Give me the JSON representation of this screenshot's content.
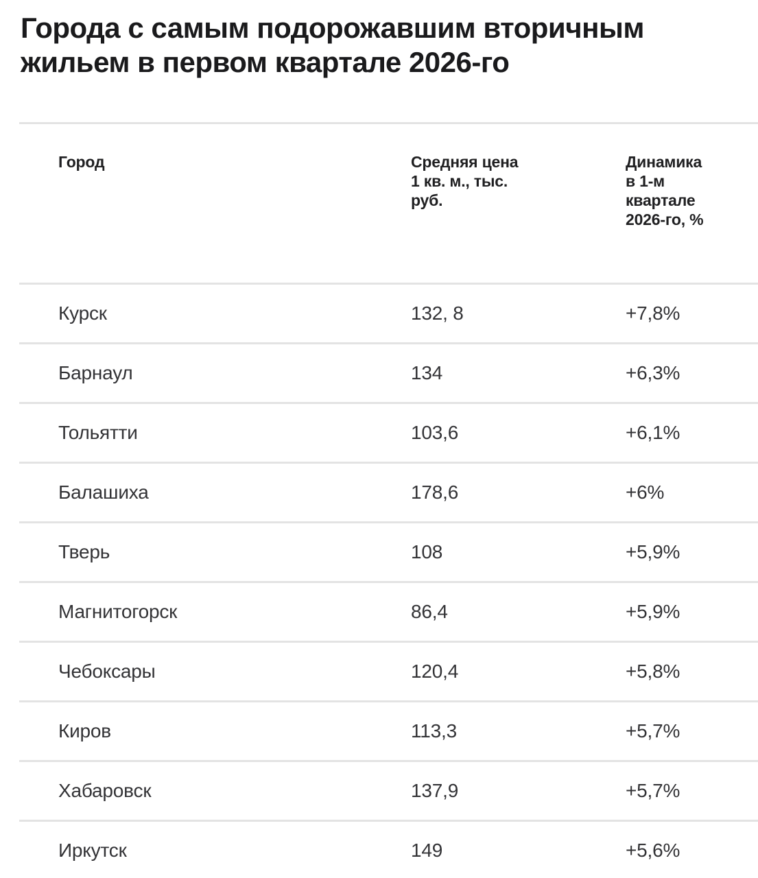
{
  "title": {
    "line1": "Города с самым подорожавшим вторичным",
    "line2": "жильем в первом квартале 2026-го"
  },
  "chart_data": {
    "type": "table",
    "title": "Города с самым подорожавшим вторичным жильем в первом квартале 2026-го",
    "columns": [
      "Город",
      "Средняя цена 1 кв. м., тыс. руб.",
      "Динамика в 1-м квартале 2026-го, %"
    ],
    "rows": [
      {
        "city": "Курск",
        "price": "132, 8",
        "change": "+7,8%"
      },
      {
        "city": "Барнаул",
        "price": "134",
        "change": "+6,3%"
      },
      {
        "city": "Тольятти",
        "price": "103,6",
        "change": "+6,1%"
      },
      {
        "city": "Балашиха",
        "price": "178,6",
        "change": "+6%"
      },
      {
        "city": "Тверь",
        "price": "108",
        "change": "+5,9%"
      },
      {
        "city": "Магнитогорск",
        "price": "86,4",
        "change": "+5,9%"
      },
      {
        "city": "Чебоксары",
        "price": "120,4",
        "change": "+5,8%"
      },
      {
        "city": "Киров",
        "price": "113,3",
        "change": "+5,7%"
      },
      {
        "city": "Хабаровск",
        "price": "137,9",
        "change": "+5,7%"
      },
      {
        "city": "Иркутск",
        "price": "149",
        "change": "+5,6%"
      }
    ],
    "colors": {
      "title_text": "#1a1a1c",
      "header_text": "#202022",
      "body_text": "#333336",
      "divider": "#e3e3e3",
      "background": "#ffffff"
    }
  }
}
